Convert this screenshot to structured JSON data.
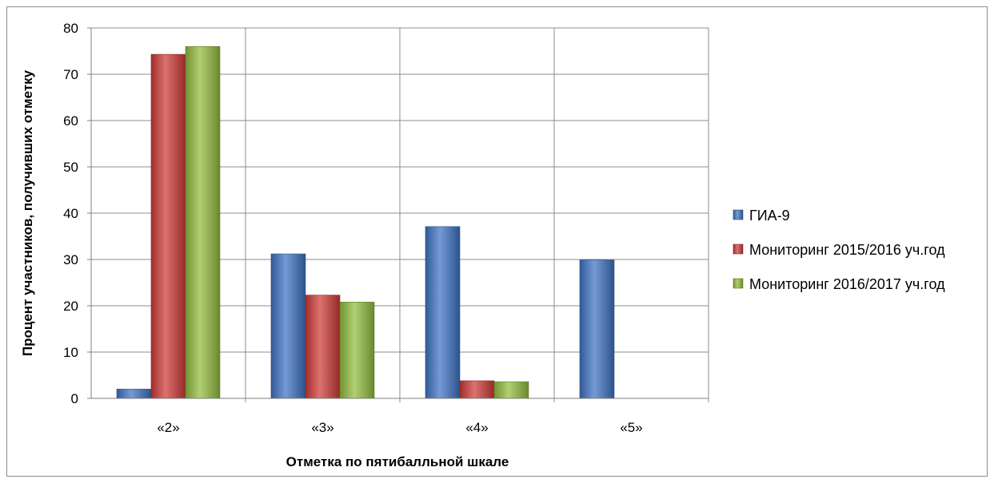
{
  "chart_data": {
    "type": "bar",
    "title": "",
    "xlabel": "Отметка по пятибалльной шкале",
    "ylabel": "Процент участников, получивших отметку",
    "categories": [
      "«2»",
      "«3»",
      "«4»",
      "«5»"
    ],
    "ylim": [
      0,
      80
    ],
    "yticks": [
      0,
      10,
      20,
      30,
      40,
      50,
      60,
      70,
      80
    ],
    "grid": true,
    "legend_position": "right",
    "series": [
      {
        "name": "ГИА-9",
        "color": "#3f73c4",
        "values": [
          2,
          31.2,
          37.1,
          29.9
        ]
      },
      {
        "name": "Мониторинг 2015/2016 уч.год",
        "color": "#cf3b37",
        "values": [
          74.3,
          22.3,
          3.8,
          0
        ]
      },
      {
        "name": "Мониторинг 2016/2017 уч.год",
        "color": "#93bd3d",
        "values": [
          76,
          20.8,
          3.6,
          0
        ]
      }
    ]
  }
}
